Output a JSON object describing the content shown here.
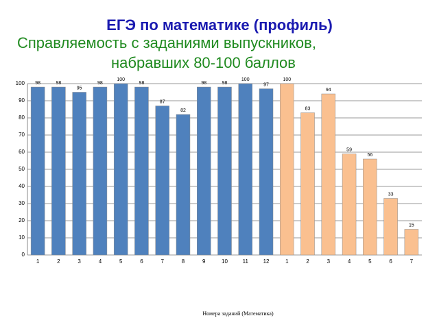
{
  "chart_data": {
    "type": "bar",
    "title": "ЕГЭ по математике (профиль)",
    "subtitle": [
      "Справляемость с заданиями выпускников,",
      "набравших 80-100 баллов"
    ],
    "x_label": "Номера заданий (Математика)",
    "categories": [
      "1",
      "2",
      "3",
      "4",
      "5",
      "6",
      "7",
      "8",
      "9",
      "10",
      "11",
      "12",
      "1",
      "2",
      "3",
      "4",
      "5",
      "6",
      "7"
    ],
    "values": [
      98,
      98,
      95,
      98,
      100,
      98,
      87,
      82,
      98,
      98,
      100,
      97,
      100,
      83,
      94,
      59,
      56,
      33,
      15
    ],
    "colors": [
      "#4f81bd",
      "#4f81bd",
      "#4f81bd",
      "#4f81bd",
      "#4f81bd",
      "#4f81bd",
      "#4f81bd",
      "#4f81bd",
      "#4f81bd",
      "#4f81bd",
      "#4f81bd",
      "#4f81bd",
      "#fac090",
      "#fac090",
      "#fac090",
      "#fac090",
      "#fac090",
      "#fac090",
      "#fac090"
    ],
    "ylim": [
      0,
      100
    ],
    "yticks": [
      0,
      10,
      20,
      30,
      40,
      50,
      60,
      70,
      80,
      90,
      100
    ],
    "grid": true
  }
}
